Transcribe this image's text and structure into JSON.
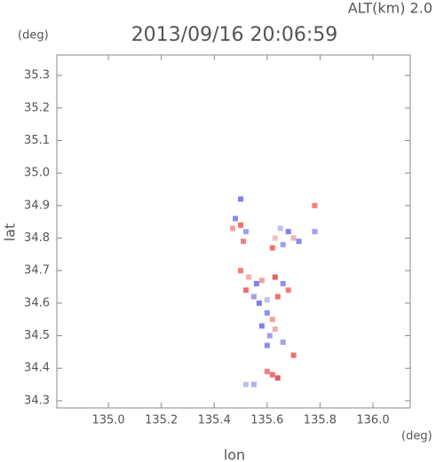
{
  "chart_data": {
    "type": "scatter",
    "title": "2013/09/16 20:06:59",
    "altitude_label": "ALT(km) 2.0",
    "y_unit": "(deg)",
    "x_unit": "(deg)",
    "xlabel": "lon",
    "ylabel": "lat",
    "xlim": [
      134.805,
      136.141
    ],
    "ylim": [
      34.278,
      35.363
    ],
    "xticks": [
      {
        "value": 135.0,
        "label": "135.0"
      },
      {
        "value": 135.2,
        "label": "135.2"
      },
      {
        "value": 135.4,
        "label": "135.4"
      },
      {
        "value": 135.6,
        "label": "135.6"
      },
      {
        "value": 135.8,
        "label": "135.8"
      },
      {
        "value": 136.0,
        "label": "136.0"
      }
    ],
    "yticks": [
      34.3,
      34.4,
      34.5,
      34.6,
      34.7,
      34.8,
      34.9,
      {
        "value": 35.0,
        "label": "35.0"
      },
      35.1,
      35.2,
      35.3
    ],
    "x": [
      135.48,
      135.5,
      135.52,
      135.47,
      135.51,
      135.63,
      135.66,
      135.68,
      135.7,
      135.62,
      135.65,
      135.72,
      135.78,
      135.5,
      135.53,
      135.56,
      135.52,
      135.55,
      135.58,
      135.63,
      135.66,
      135.68,
      135.6,
      135.64,
      135.57,
      135.6,
      135.62,
      135.58,
      135.61,
      135.6,
      135.63,
      135.66,
      135.62,
      135.6,
      135.64,
      135.55,
      135.52,
      135.7,
      135.78,
      135.5
    ],
    "y": [
      34.86,
      34.84,
      34.82,
      34.83,
      34.79,
      34.8,
      34.78,
      34.82,
      34.8,
      34.77,
      34.83,
      34.79,
      34.82,
      34.7,
      34.68,
      34.66,
      34.64,
      34.62,
      34.67,
      34.68,
      34.66,
      34.64,
      34.61,
      34.62,
      34.6,
      34.57,
      34.55,
      34.53,
      34.5,
      34.47,
      34.52,
      34.48,
      34.38,
      34.39,
      34.37,
      34.35,
      34.35,
      34.44,
      34.9,
      34.92
    ],
    "colors": [
      "#8a8af0",
      "#f07070",
      "#a0a0f0",
      "#f0a0a0",
      "#f08080",
      "#f5c0c0",
      "#a0a0f0",
      "#8080f0",
      "#f0b0b0",
      "#f07070",
      "#c0c0f5",
      "#8a8af0",
      "#a0a0f0",
      "#f08080",
      "#f5b0b0",
      "#8080f0",
      "#f07070",
      "#a0a0f0",
      "#f0a0a0",
      "#e06060",
      "#9090f0",
      "#f08080",
      "#c0c0f5",
      "#f07070",
      "#8080f0",
      "#9090f0",
      "#f0a0a0",
      "#8080f0",
      "#a0a0f0",
      "#8a8af0",
      "#f0b0b0",
      "#a0a0f0",
      "#f07070",
      "#f08080",
      "#e06060",
      "#b0b0f0",
      "#c0c0f5",
      "#f07070",
      "#f08080",
      "#8080f0"
    ]
  }
}
